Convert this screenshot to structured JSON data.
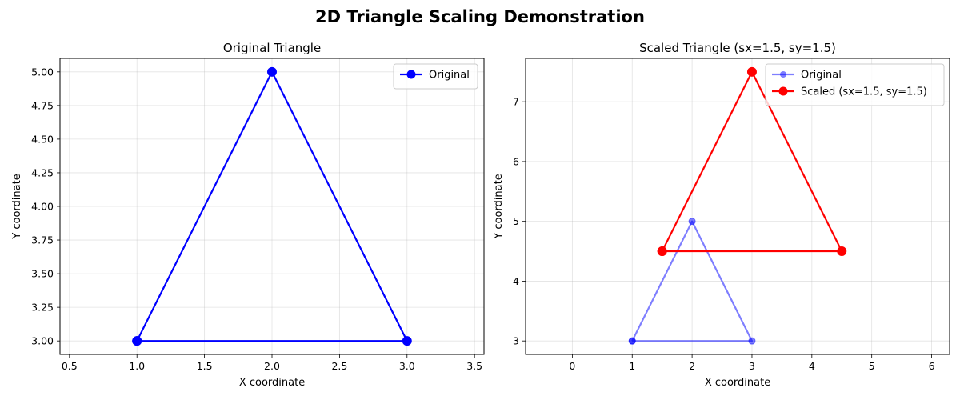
{
  "figure": {
    "title": "2D Triangle Scaling Demonstration"
  },
  "chart_data": [
    {
      "type": "line",
      "title": "Original Triangle",
      "xlabel": "X coordinate",
      "ylabel": "Y coordinate",
      "xlim": [
        0.43,
        3.57
      ],
      "ylim": [
        2.9,
        5.1
      ],
      "xticks": [
        0.5,
        1.0,
        1.5,
        2.0,
        2.5,
        3.0,
        3.5
      ],
      "xtick_labels": [
        "0.5",
        "1.0",
        "1.5",
        "2.0",
        "2.5",
        "3.0",
        "3.5"
      ],
      "yticks": [
        3.0,
        3.25,
        3.5,
        3.75,
        4.0,
        4.25,
        4.5,
        4.75,
        5.0
      ],
      "ytick_labels": [
        "3.00",
        "3.25",
        "3.50",
        "3.75",
        "4.00",
        "4.25",
        "4.50",
        "4.75",
        "5.00"
      ],
      "grid": true,
      "legend_position": "upper right",
      "series": [
        {
          "name": "Original",
          "color": "#0000ff",
          "opacity": 1.0,
          "marker": "circle",
          "x": [
            1,
            2,
            3,
            1
          ],
          "y": [
            3,
            5,
            3,
            3
          ]
        }
      ]
    },
    {
      "type": "line",
      "title": "Scaled Triangle (sx=1.5, sy=1.5)",
      "xlabel": "X coordinate",
      "ylabel": "Y coordinate",
      "xlim": [
        -0.78,
        6.3
      ],
      "ylim": [
        2.775,
        7.725
      ],
      "xticks": [
        0,
        1,
        2,
        3,
        4,
        5,
        6
      ],
      "xtick_labels": [
        "0",
        "1",
        "2",
        "3",
        "4",
        "5",
        "6"
      ],
      "yticks": [
        3,
        4,
        5,
        6,
        7
      ],
      "ytick_labels": [
        "3",
        "4",
        "5",
        "6",
        "7"
      ],
      "grid": true,
      "legend_position": "upper right",
      "series": [
        {
          "name": "Original",
          "color": "#0000ff",
          "opacity": 0.5,
          "marker": "circle",
          "x": [
            1,
            2,
            3,
            1
          ],
          "y": [
            3,
            5,
            3,
            3
          ]
        },
        {
          "name": "Scaled (sx=1.5, sy=1.5)",
          "color": "#ff0000",
          "opacity": 1.0,
          "marker": "circle",
          "x": [
            1.5,
            3,
            4.5,
            1.5
          ],
          "y": [
            4.5,
            7.5,
            4.5,
            4.5
          ]
        }
      ]
    }
  ]
}
